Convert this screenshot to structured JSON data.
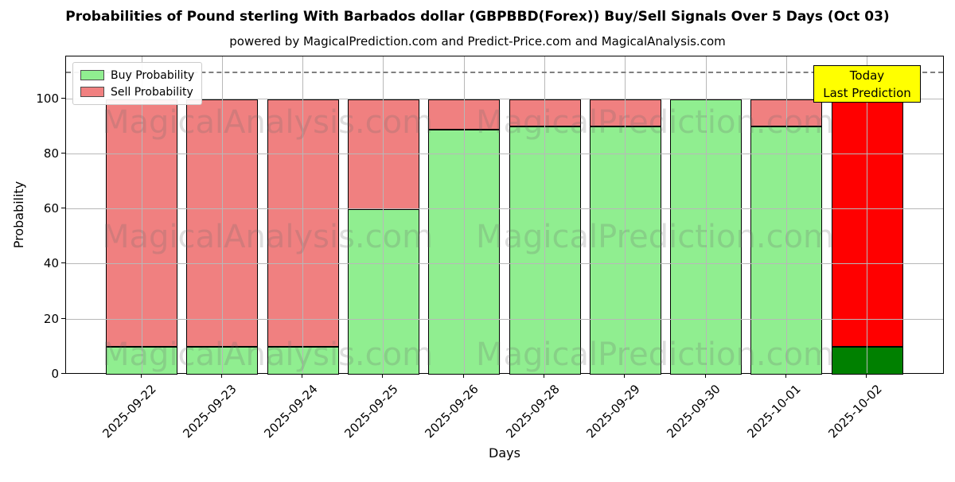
{
  "chart_data": {
    "type": "bar",
    "stacked": true,
    "title": "Probabilities of Pound sterling With Barbados dollar (GBPBBD(Forex)) Buy/Sell Signals Over 5 Days (Oct 03)",
    "subtitle": "powered by MagicalPrediction.com and Predict-Price.com and MagicalAnalysis.com",
    "xlabel": "Days",
    "ylabel": "Probability",
    "ylim": [
      0,
      115.5
    ],
    "yticks": [
      0,
      20,
      40,
      60,
      80,
      100
    ],
    "grid": true,
    "dashed_line_y": 110,
    "categories": [
      "2025-09-22",
      "2025-09-23",
      "2025-09-24",
      "2025-09-25",
      "2025-09-26",
      "2025-09-28",
      "2025-09-29",
      "2025-09-30",
      "2025-10-01",
      "2025-10-02"
    ],
    "series": [
      {
        "name": "Buy Probability",
        "color": "#90EE90",
        "values": [
          10,
          10,
          10,
          60,
          89,
          90,
          90,
          100,
          90,
          10
        ]
      },
      {
        "name": "Sell Probability",
        "color": "#F08080",
        "values": [
          90,
          90,
          90,
          40,
          11,
          10,
          10,
          0,
          10,
          90
        ]
      }
    ],
    "today_index": 9,
    "today_colors": {
      "buy": "#008000",
      "sell": "#FF0000"
    },
    "legend_position": "upper left",
    "annotation": {
      "line1": "Today",
      "line2": "Last Prediction",
      "bg_color": "#FFFF00"
    },
    "watermarks": {
      "left_text": "MagicalAnalysis.com",
      "right_text": "MagicalPrediction.com",
      "rows": 3
    }
  }
}
